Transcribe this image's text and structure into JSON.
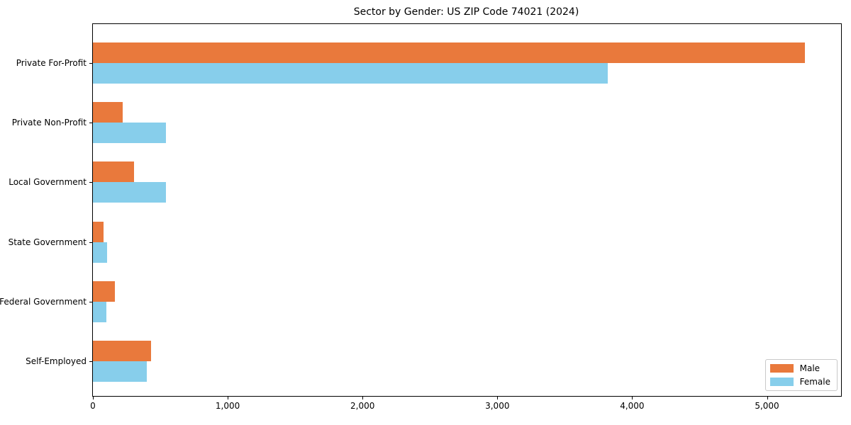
{
  "title": "Sector by Gender: US ZIP Code 74021 (2024)",
  "chart_data": {
    "type": "bar",
    "orientation": "horizontal",
    "title": "Sector by Gender: US ZIP Code 74021 (2024)",
    "categories": [
      "Private For-Profit",
      "Private Non-Profit",
      "Local Government",
      "State Government",
      "Federal Government",
      "Self-Employed"
    ],
    "series": [
      {
        "name": "Male",
        "color": "#e9793c",
        "values": [
          5280,
          220,
          305,
          80,
          165,
          430
        ]
      },
      {
        "name": "Female",
        "color": "#87ceeb",
        "values": [
          3820,
          540,
          540,
          105,
          100,
          400
        ]
      }
    ],
    "xlabel": "",
    "ylabel": "",
    "xlim": [
      0,
      5550
    ],
    "xticks": [
      0,
      1000,
      2000,
      3000,
      4000,
      5000
    ],
    "xtick_labels": [
      "0",
      "1,000",
      "2,000",
      "3,000",
      "4,000",
      "5,000"
    ],
    "grid": false,
    "legend_position": "lower right"
  }
}
